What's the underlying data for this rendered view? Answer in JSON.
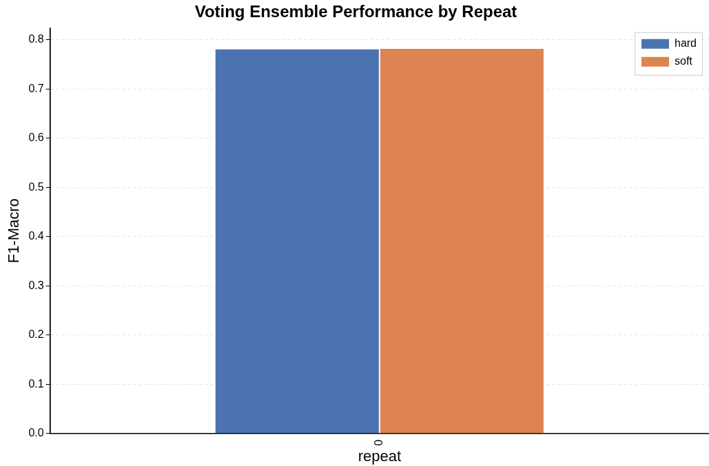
{
  "chart_data": {
    "type": "bar",
    "title": "Voting Ensemble Performance by Repeat",
    "xlabel": "repeat",
    "ylabel": "F1-Macro",
    "categories": [
      "0"
    ],
    "series": [
      {
        "name": "hard",
        "color": "#4c72b0",
        "values": [
          0.782
        ]
      },
      {
        "name": "soft",
        "color": "#dd8452",
        "values": [
          0.783
        ]
      }
    ],
    "ylim": [
      0,
      0.824
    ],
    "yticks": [
      {
        "value": 0,
        "label": "0.0"
      },
      {
        "value": 0.1,
        "label": "0.1"
      },
      {
        "value": 0.2,
        "label": "0.2"
      },
      {
        "value": 0.3,
        "label": "0.3"
      },
      {
        "value": 0.4,
        "label": "0.4"
      },
      {
        "value": 0.5,
        "label": "0.5"
      },
      {
        "value": 0.6,
        "label": "0.6"
      },
      {
        "value": 0.7,
        "label": "0.7"
      },
      {
        "value": 0.8,
        "label": "0.8"
      }
    ],
    "grid": "y",
    "legend": "top right"
  }
}
